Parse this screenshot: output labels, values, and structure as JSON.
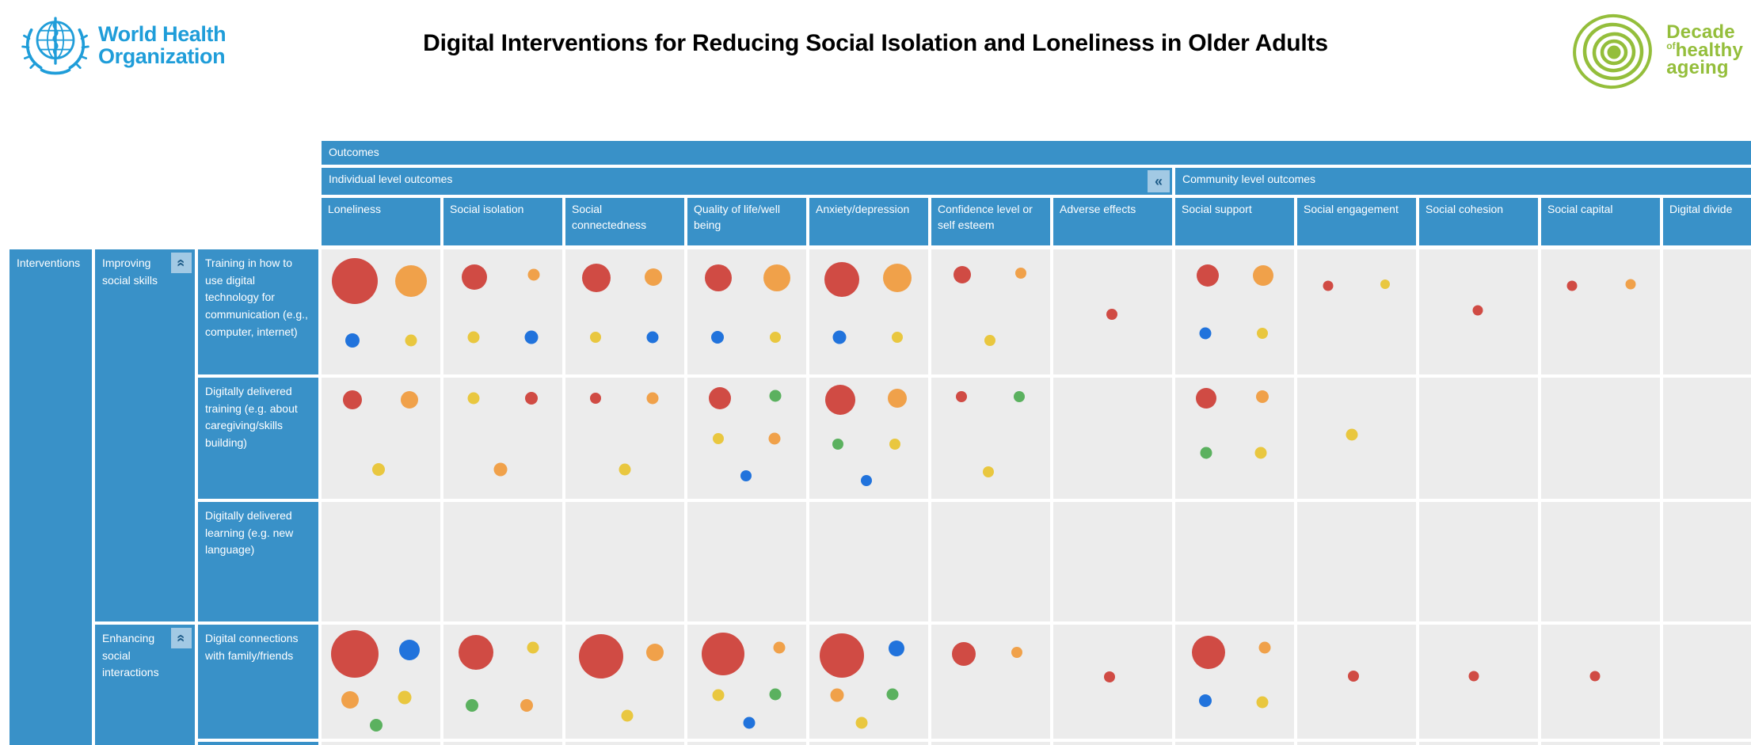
{
  "page": {
    "title": "Digital Interventions for Reducing Social Isolation and Loneliness in Older Adults"
  },
  "who_logo": {
    "line1": "World Health",
    "line2": "Organization"
  },
  "decade_logo": {
    "word1": "Decade",
    "of": "of",
    "word2": "healthy",
    "word3": "ageing"
  },
  "matrix": {
    "outcomes_label": "Outcomes",
    "interventions_label": "Interventions",
    "collapse_left_glyph": "«",
    "collapse_up_glyph": "«",
    "column_group_labels": [
      "Individual level outcomes",
      "Community level outcomes"
    ],
    "row_group_labels": [
      "Improving social skills",
      "Enhancing social interactions"
    ]
  },
  "colors": {
    "header_blue": "#3991C8",
    "cell_bg": "#ECECEC",
    "button_blue": "#A2C9E4",
    "button_glyph": "#1D5B88",
    "who_blue": "#1F9DD9",
    "decade_green": "#94BE3B"
  },
  "chart_data": {
    "type": "bubble-matrix",
    "title": "Digital Interventions for Reducing Social Isolation and Loneliness in Older Adults",
    "x_axis": "Outcomes",
    "y_axis": "Interventions",
    "legend_note": "bubble size ~ volume of evidence; color = evidence category",
    "bubble_palette": {
      "red": "#D04B44",
      "orange": "#F0A14A",
      "blue": "#2173DC",
      "yellow": "#E9C73F",
      "green": "#5BB15F"
    },
    "column_groups": [
      {
        "label": "Individual level outcomes",
        "columns": [
          0,
          1,
          2,
          3,
          4,
          5,
          6
        ]
      },
      {
        "label": "Community level outcomes",
        "columns": [
          7,
          8,
          9,
          10,
          11
        ]
      }
    ],
    "columns": [
      "Loneliness",
      "Social isolation",
      "Social connectedness",
      "Quality of life/well being",
      "Anxiety/depression",
      "Confidence level or self esteem",
      "Adverse effects",
      "Social support",
      "Social engagement",
      "Social cohesion",
      "Social capital",
      "Digital divide"
    ],
    "rows": [
      {
        "group": "Improving social skills",
        "label": "Training in how to use digital technology for communication (e.g., computer, internet)"
      },
      {
        "group": "Improving social skills",
        "label": "Digitally delivered training (e.g. about caregiving/skills building)"
      },
      {
        "group": "Improving social skills",
        "label": "Digitally delivered learning (e.g. new language)"
      },
      {
        "group": "Enhancing social interactions",
        "label": "Digital connections with family/friends"
      }
    ],
    "cells": [
      [
        [
          {
            "c": "red",
            "d": 58,
            "x": 28,
            "y": 25
          },
          {
            "c": "orange",
            "d": 40,
            "x": 75,
            "y": 25
          },
          {
            "c": "blue",
            "d": 18,
            "x": 26,
            "y": 73
          },
          {
            "c": "yellow",
            "d": 15,
            "x": 75,
            "y": 73
          }
        ],
        [
          {
            "c": "red",
            "d": 32,
            "x": 26,
            "y": 22
          },
          {
            "c": "orange",
            "d": 15,
            "x": 76,
            "y": 20
          },
          {
            "c": "yellow",
            "d": 15,
            "x": 25,
            "y": 70
          },
          {
            "c": "blue",
            "d": 17,
            "x": 74,
            "y": 70
          }
        ],
        [
          {
            "c": "red",
            "d": 36,
            "x": 26,
            "y": 23
          },
          {
            "c": "orange",
            "d": 22,
            "x": 74,
            "y": 22
          },
          {
            "c": "yellow",
            "d": 14,
            "x": 25,
            "y": 70
          },
          {
            "c": "blue",
            "d": 15,
            "x": 73,
            "y": 70
          }
        ],
        [
          {
            "c": "red",
            "d": 34,
            "x": 26,
            "y": 23
          },
          {
            "c": "orange",
            "d": 34,
            "x": 75,
            "y": 23
          },
          {
            "c": "blue",
            "d": 16,
            "x": 25,
            "y": 70
          },
          {
            "c": "yellow",
            "d": 14,
            "x": 74,
            "y": 70
          }
        ],
        [
          {
            "c": "red",
            "d": 44,
            "x": 27,
            "y": 24
          },
          {
            "c": "orange",
            "d": 36,
            "x": 74,
            "y": 23
          },
          {
            "c": "blue",
            "d": 17,
            "x": 25,
            "y": 70
          },
          {
            "c": "yellow",
            "d": 14,
            "x": 74,
            "y": 70
          }
        ],
        [
          {
            "c": "red",
            "d": 22,
            "x": 26,
            "y": 20
          },
          {
            "c": "orange",
            "d": 14,
            "x": 75,
            "y": 19
          },
          {
            "c": "yellow",
            "d": 14,
            "x": 49,
            "y": 73
          }
        ],
        [
          {
            "c": "red",
            "d": 14,
            "x": 49,
            "y": 52
          }
        ],
        [
          {
            "c": "red",
            "d": 28,
            "x": 27,
            "y": 21
          },
          {
            "c": "orange",
            "d": 26,
            "x": 74,
            "y": 21
          },
          {
            "c": "blue",
            "d": 15,
            "x": 25,
            "y": 67
          },
          {
            "c": "yellow",
            "d": 14,
            "x": 73,
            "y": 67
          }
        ],
        [
          {
            "c": "red",
            "d": 13,
            "x": 26,
            "y": 29
          },
          {
            "c": "yellow",
            "d": 12,
            "x": 74,
            "y": 28
          }
        ],
        [
          {
            "c": "red",
            "d": 13,
            "x": 49,
            "y": 49
          }
        ],
        [
          {
            "c": "red",
            "d": 13,
            "x": 26,
            "y": 29
          },
          {
            "c": "orange",
            "d": 13,
            "x": 75,
            "y": 28
          }
        ],
        []
      ],
      [
        [
          {
            "c": "red",
            "d": 24,
            "x": 26,
            "y": 18
          },
          {
            "c": "orange",
            "d": 22,
            "x": 74,
            "y": 18
          },
          {
            "c": "yellow",
            "d": 16,
            "x": 48,
            "y": 76
          }
        ],
        [
          {
            "c": "yellow",
            "d": 15,
            "x": 25,
            "y": 17
          },
          {
            "c": "red",
            "d": 16,
            "x": 74,
            "y": 17
          },
          {
            "c": "orange",
            "d": 17,
            "x": 48,
            "y": 76
          }
        ],
        [
          {
            "c": "red",
            "d": 14,
            "x": 25,
            "y": 17
          },
          {
            "c": "orange",
            "d": 15,
            "x": 73,
            "y": 17
          },
          {
            "c": "yellow",
            "d": 15,
            "x": 50,
            "y": 76
          }
        ],
        [
          {
            "c": "red",
            "d": 28,
            "x": 27,
            "y": 17
          },
          {
            "c": "green",
            "d": 15,
            "x": 74,
            "y": 15
          },
          {
            "c": "yellow",
            "d": 14,
            "x": 26,
            "y": 50
          },
          {
            "c": "orange",
            "d": 15,
            "x": 73,
            "y": 50
          },
          {
            "c": "blue",
            "d": 14,
            "x": 49,
            "y": 81
          }
        ],
        [
          {
            "c": "red",
            "d": 38,
            "x": 26,
            "y": 18
          },
          {
            "c": "orange",
            "d": 24,
            "x": 74,
            "y": 17
          },
          {
            "c": "green",
            "d": 14,
            "x": 24,
            "y": 55
          },
          {
            "c": "yellow",
            "d": 14,
            "x": 72,
            "y": 55
          },
          {
            "c": "blue",
            "d": 14,
            "x": 48,
            "y": 85
          }
        ],
        [
          {
            "c": "red",
            "d": 14,
            "x": 25,
            "y": 16
          },
          {
            "c": "green",
            "d": 14,
            "x": 74,
            "y": 16
          },
          {
            "c": "yellow",
            "d": 14,
            "x": 48,
            "y": 78
          }
        ],
        [],
        [
          {
            "c": "red",
            "d": 26,
            "x": 26,
            "y": 17
          },
          {
            "c": "orange",
            "d": 16,
            "x": 73,
            "y": 16
          },
          {
            "c": "green",
            "d": 15,
            "x": 26,
            "y": 62
          },
          {
            "c": "yellow",
            "d": 15,
            "x": 72,
            "y": 62
          }
        ],
        [
          {
            "c": "yellow",
            "d": 15,
            "x": 46,
            "y": 47
          }
        ],
        [],
        [],
        []
      ],
      [
        [],
        [],
        [],
        [],
        [],
        [],
        [],
        [],
        [],
        [],
        [],
        []
      ],
      [
        [
          {
            "c": "red",
            "d": 60,
            "x": 28,
            "y": 26
          },
          {
            "c": "blue",
            "d": 26,
            "x": 74,
            "y": 22
          },
          {
            "c": "orange",
            "d": 22,
            "x": 24,
            "y": 66
          },
          {
            "c": "yellow",
            "d": 17,
            "x": 70,
            "y": 64
          },
          {
            "c": "green",
            "d": 16,
            "x": 46,
            "y": 88
          }
        ],
        [
          {
            "c": "red",
            "d": 44,
            "x": 27,
            "y": 24
          },
          {
            "c": "yellow",
            "d": 15,
            "x": 75,
            "y": 20
          },
          {
            "c": "green",
            "d": 16,
            "x": 24,
            "y": 71
          },
          {
            "c": "orange",
            "d": 16,
            "x": 70,
            "y": 71
          }
        ],
        [
          {
            "c": "red",
            "d": 56,
            "x": 30,
            "y": 28
          },
          {
            "c": "orange",
            "d": 22,
            "x": 75,
            "y": 24
          },
          {
            "c": "yellow",
            "d": 15,
            "x": 52,
            "y": 80
          }
        ],
        [
          {
            "c": "red",
            "d": 54,
            "x": 30,
            "y": 26
          },
          {
            "c": "orange",
            "d": 15,
            "x": 77,
            "y": 20
          },
          {
            "c": "yellow",
            "d": 15,
            "x": 26,
            "y": 62
          },
          {
            "c": "green",
            "d": 15,
            "x": 74,
            "y": 61
          },
          {
            "c": "blue",
            "d": 15,
            "x": 52,
            "y": 86
          }
        ],
        [
          {
            "c": "red",
            "d": 56,
            "x": 27,
            "y": 27
          },
          {
            "c": "blue",
            "d": 20,
            "x": 73,
            "y": 21
          },
          {
            "c": "orange",
            "d": 17,
            "x": 23,
            "y": 62
          },
          {
            "c": "green",
            "d": 15,
            "x": 70,
            "y": 61
          },
          {
            "c": "yellow",
            "d": 15,
            "x": 44,
            "y": 86
          }
        ],
        [
          {
            "c": "red",
            "d": 30,
            "x": 27,
            "y": 26
          },
          {
            "c": "orange",
            "d": 14,
            "x": 72,
            "y": 24
          }
        ],
        [
          {
            "c": "red",
            "d": 14,
            "x": 47,
            "y": 46
          }
        ],
        [
          {
            "c": "red",
            "d": 42,
            "x": 28,
            "y": 24
          },
          {
            "c": "orange",
            "d": 15,
            "x": 75,
            "y": 20
          },
          {
            "c": "blue",
            "d": 16,
            "x": 25,
            "y": 67
          },
          {
            "c": "yellow",
            "d": 15,
            "x": 73,
            "y": 68
          }
        ],
        [
          {
            "c": "red",
            "d": 14,
            "x": 47,
            "y": 45
          }
        ],
        [
          {
            "c": "red",
            "d": 13,
            "x": 46,
            "y": 45
          }
        ],
        [
          {
            "c": "red",
            "d": 13,
            "x": 45,
            "y": 45
          }
        ],
        []
      ]
    ]
  }
}
